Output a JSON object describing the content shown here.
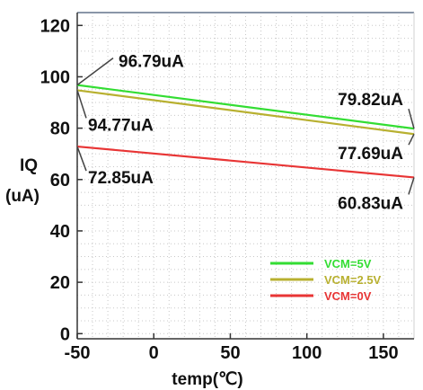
{
  "chart_data": {
    "type": "line",
    "title": "",
    "xlabel": "temp(℃)",
    "ylabel_line1": "IQ",
    "ylabel_line2": "(uA)",
    "xlim": [
      -50,
      170
    ],
    "ylim": [
      -2,
      125
    ],
    "x_ticks": [
      "-50",
      "0",
      "50",
      "100",
      "150"
    ],
    "y_ticks": [
      "0",
      "20",
      "40",
      "60",
      "80",
      "100",
      "120"
    ],
    "grid": true,
    "legend_position": "bottom-right",
    "series": [
      {
        "name": "VCM=5V",
        "color": "#33dd33",
        "x": [
          -50,
          170
        ],
        "y": [
          96.79,
          79.82
        ]
      },
      {
        "name": "VCM=2.5V",
        "color": "#b8b030",
        "x": [
          -50,
          170
        ],
        "y": [
          94.77,
          77.69
        ]
      },
      {
        "name": "VCM=0V",
        "color": "#e83535",
        "x": [
          -50,
          170
        ],
        "y": [
          72.85,
          60.83
        ]
      }
    ],
    "annotations": [
      {
        "text": "96.79uA",
        "x": -50,
        "y": 96.79
      },
      {
        "text": "94.77uA",
        "x": -50,
        "y": 94.77
      },
      {
        "text": "72.85uA",
        "x": -50,
        "y": 72.85
      },
      {
        "text": "79.82uA",
        "x": 170,
        "y": 79.82
      },
      {
        "text": "77.69uA",
        "x": 170,
        "y": 77.69
      },
      {
        "text": "60.83uA",
        "x": 170,
        "y": 60.83
      }
    ]
  }
}
